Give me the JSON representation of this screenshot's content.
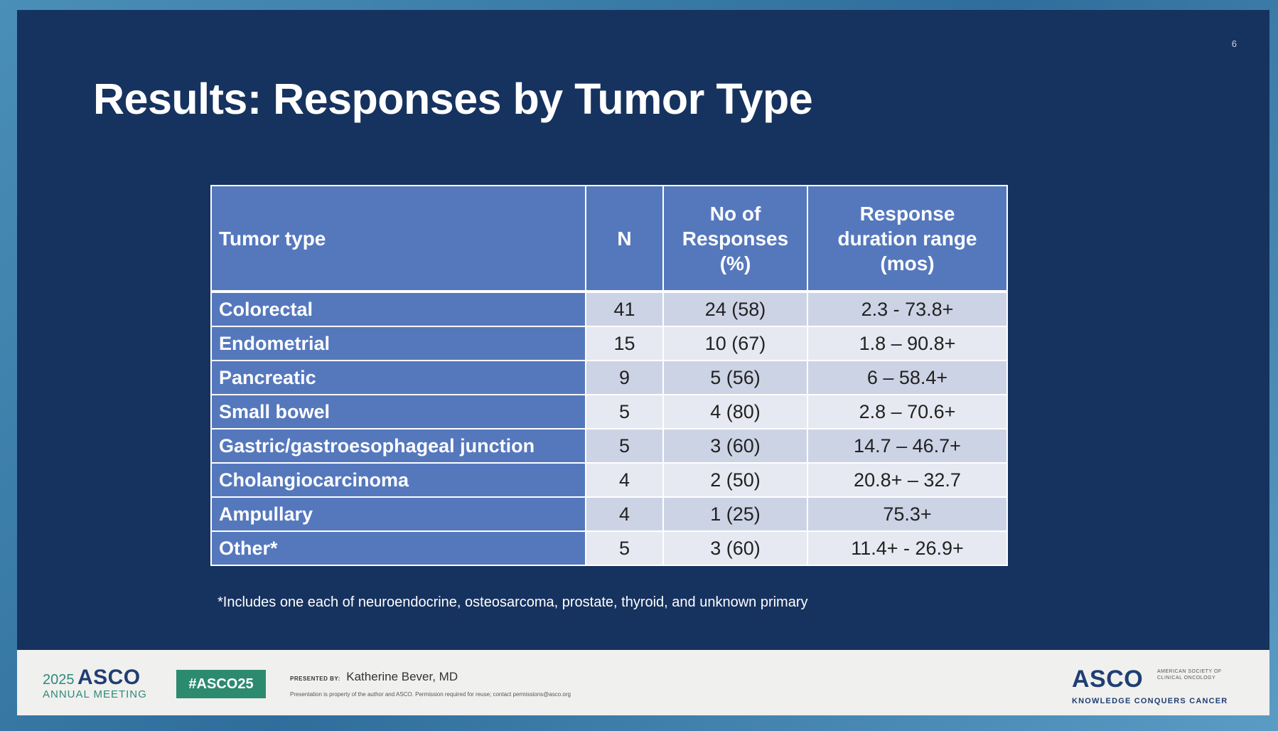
{
  "slide": {
    "page_number": "6",
    "title": "Results: Responses by Tumor Type"
  },
  "table": {
    "headers": {
      "tumor_type": "Tumor type",
      "n": "N",
      "responses": [
        "No of",
        "Responses",
        "(%)"
      ],
      "duration": [
        "Response",
        "duration range",
        "(mos)"
      ]
    },
    "rows": [
      {
        "type": "Colorectal",
        "n": "41",
        "responses": "24 (58)",
        "duration": "2.3 - 73.8+"
      },
      {
        "type": "Endometrial",
        "n": "15",
        "responses": "10 (67)",
        "duration": "1.8 – 90.8+"
      },
      {
        "type": "Pancreatic",
        "n": "9",
        "responses": "5 (56)",
        "duration": "6 – 58.4+"
      },
      {
        "type": "Small bowel",
        "n": "5",
        "responses": "4 (80)",
        "duration": "2.8 – 70.6+"
      },
      {
        "type": "Gastric/gastroesophageal junction",
        "n": "5",
        "responses": "3 (60)",
        "duration": "14.7 – 46.7+"
      },
      {
        "type": "Cholangiocarcinoma",
        "n": "4",
        "responses": "2 (50)",
        "duration": "20.8+ – 32.7"
      },
      {
        "type": "Ampullary",
        "n": "4",
        "responses": "1 (25)",
        "duration": "75.3+"
      },
      {
        "type": "Other*",
        "n": "5",
        "responses": "3 (60)",
        "duration": "11.4+ - 26.9+"
      }
    ],
    "footnote": "*Includes one each of neuroendocrine, osteosarcoma, prostate, thyroid, and unknown primary"
  },
  "footer": {
    "meeting_year": "2025",
    "meeting_name": "ASCO",
    "meeting_sub": "ANNUAL MEETING",
    "hashtag": "#ASCO25",
    "presented_by_label": "PRESENTED BY:",
    "presenter": "Katherine Bever, MD",
    "disclaimer": "Presentation is property of the author and ASCO. Permission required for reuse; contact permissions@asco.org",
    "org_logo": "ASCO",
    "org_full": "AMERICAN SOCIETY OF CLINICAL ONCOLOGY",
    "org_tagline": "KNOWLEDGE CONQUERS CANCER"
  },
  "colors": {
    "slide_background": "#16325f",
    "header_cell": "#5578bd",
    "row_odd": "#ccd3e5",
    "row_even": "#e6e9f1",
    "hashtag_green": "#2c8a6e"
  }
}
